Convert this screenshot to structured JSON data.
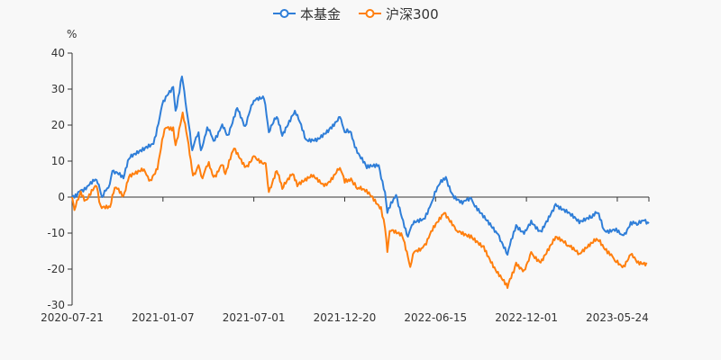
{
  "chart_data": {
    "type": "line",
    "title": "",
    "ylabel": "%",
    "xlabel": "",
    "ylim": [
      -30,
      40
    ],
    "yticks": [
      40,
      30,
      20,
      10,
      0,
      -10,
      -20,
      -30
    ],
    "xlim": [
      0,
      730
    ],
    "x_unit": "trading-day index",
    "xticks": [
      {
        "x": 0,
        "label": "2020-07-21"
      },
      {
        "x": 115,
        "label": "2021-01-07"
      },
      {
        "x": 230,
        "label": "2021-07-01"
      },
      {
        "x": 345,
        "label": "2021-12-20"
      },
      {
        "x": 460,
        "label": "2022-06-15"
      },
      {
        "x": 575,
        "label": "2022-12-01"
      },
      {
        "x": 690,
        "label": "2023-05-24"
      }
    ],
    "legend_position": "top-center",
    "series": [
      {
        "name": "本基金",
        "color": "#2f7ed8",
        "points": [
          [
            0,
            0
          ],
          [
            6,
            0.2
          ],
          [
            11,
            1.9
          ],
          [
            19,
            3
          ],
          [
            31,
            4.75
          ],
          [
            38,
            0
          ],
          [
            46,
            2.6
          ],
          [
            51,
            7.25
          ],
          [
            65,
            5.2
          ],
          [
            72,
            10.6
          ],
          [
            91,
            13
          ],
          [
            103,
            14.75
          ],
          [
            114,
            25.6
          ],
          [
            128,
            30.6
          ],
          [
            131,
            24
          ],
          [
            139,
            33.5
          ],
          [
            145,
            24
          ],
          [
            152,
            13
          ],
          [
            160,
            18
          ],
          [
            163,
            13
          ],
          [
            171,
            19.4
          ],
          [
            179,
            15.6
          ],
          [
            190,
            20.2
          ],
          [
            197,
            17.25
          ],
          [
            209,
            24.75
          ],
          [
            219,
            19.75
          ],
          [
            230,
            26.8
          ],
          [
            243,
            27.25
          ],
          [
            249,
            18
          ],
          [
            259,
            22.25
          ],
          [
            266,
            17
          ],
          [
            282,
            24
          ],
          [
            296,
            16
          ],
          [
            311,
            16.4
          ],
          [
            327,
            19.4
          ],
          [
            339,
            22.25
          ],
          [
            345,
            18
          ],
          [
            353,
            18
          ],
          [
            361,
            12.25
          ],
          [
            373,
            8
          ],
          [
            388,
            8.9
          ],
          [
            396,
            1.4
          ],
          [
            399,
            -4.4
          ],
          [
            410,
            0.6
          ],
          [
            425,
            -11
          ],
          [
            430,
            -7.75
          ],
          [
            445,
            -6
          ],
          [
            456,
            -1
          ],
          [
            467,
            4.75
          ],
          [
            473,
            5.6
          ],
          [
            482,
            0.6
          ],
          [
            494,
            -1.9
          ],
          [
            505,
            -0.25
          ],
          [
            516,
            -4.4
          ],
          [
            532,
            -8.6
          ],
          [
            539,
            -10.25
          ],
          [
            551,
            -16
          ],
          [
            562,
            -7.75
          ],
          [
            572,
            -10.25
          ],
          [
            581,
            -6.5
          ],
          [
            593,
            -9.4
          ],
          [
            612,
            -1.9
          ],
          [
            627,
            -4.4
          ],
          [
            642,
            -7.3
          ],
          [
            658,
            -5.7
          ],
          [
            665,
            -4.4
          ],
          [
            673,
            -9
          ],
          [
            687,
            -9.4
          ],
          [
            698,
            -10.6
          ],
          [
            707,
            -6.9
          ],
          [
            715,
            -7.75
          ],
          [
            724,
            -6.5
          ],
          [
            730,
            -7.3
          ]
        ]
      },
      {
        "name": "沪深300",
        "color": "#ff7f0e",
        "points": [
          [
            0,
            0
          ],
          [
            3,
            -3.6
          ],
          [
            11,
            1.6
          ],
          [
            17,
            -0.8
          ],
          [
            31,
            3
          ],
          [
            36,
            -2.3
          ],
          [
            48,
            -2.75
          ],
          [
            54,
            2.6
          ],
          [
            65,
            0.4
          ],
          [
            72,
            5.6
          ],
          [
            91,
            7.7
          ],
          [
            99,
            4.75
          ],
          [
            108,
            7.7
          ],
          [
            117,
            18.9
          ],
          [
            128,
            19.4
          ],
          [
            131,
            14.4
          ],
          [
            140,
            23.5
          ],
          [
            146,
            16.4
          ],
          [
            153,
            6
          ],
          [
            160,
            8.9
          ],
          [
            165,
            5.2
          ],
          [
            173,
            9.75
          ],
          [
            179,
            5.6
          ],
          [
            190,
            8.9
          ],
          [
            194,
            6.4
          ],
          [
            205,
            13.5
          ],
          [
            220,
            8.5
          ],
          [
            230,
            11.4
          ],
          [
            245,
            9.4
          ],
          [
            249,
            1.4
          ],
          [
            259,
            7.25
          ],
          [
            266,
            2.25
          ],
          [
            279,
            6.4
          ],
          [
            285,
            3
          ],
          [
            304,
            5.6
          ],
          [
            319,
            3
          ],
          [
            339,
            8.1
          ],
          [
            345,
            4
          ],
          [
            353,
            5.2
          ],
          [
            361,
            2.25
          ],
          [
            368,
            2.25
          ],
          [
            391,
            -2.75
          ],
          [
            396,
            -8.6
          ],
          [
            399,
            -15.25
          ],
          [
            402,
            -9.4
          ],
          [
            418,
            -11
          ],
          [
            428,
            -19.4
          ],
          [
            433,
            -15.25
          ],
          [
            445,
            -13.6
          ],
          [
            456,
            -9.4
          ],
          [
            471,
            -4.4
          ],
          [
            487,
            -9.4
          ],
          [
            505,
            -10.6
          ],
          [
            521,
            -13.6
          ],
          [
            536,
            -20.25
          ],
          [
            551,
            -25.25
          ],
          [
            562,
            -18.2
          ],
          [
            572,
            -20.25
          ],
          [
            581,
            -15.25
          ],
          [
            593,
            -18.2
          ],
          [
            612,
            -11
          ],
          [
            627,
            -13.6
          ],
          [
            642,
            -15.7
          ],
          [
            658,
            -12.75
          ],
          [
            665,
            -11.9
          ],
          [
            676,
            -14.4
          ],
          [
            687,
            -17.75
          ],
          [
            698,
            -19
          ],
          [
            707,
            -16
          ],
          [
            715,
            -18.2
          ],
          [
            727,
            -18.2
          ]
        ]
      }
    ]
  }
}
